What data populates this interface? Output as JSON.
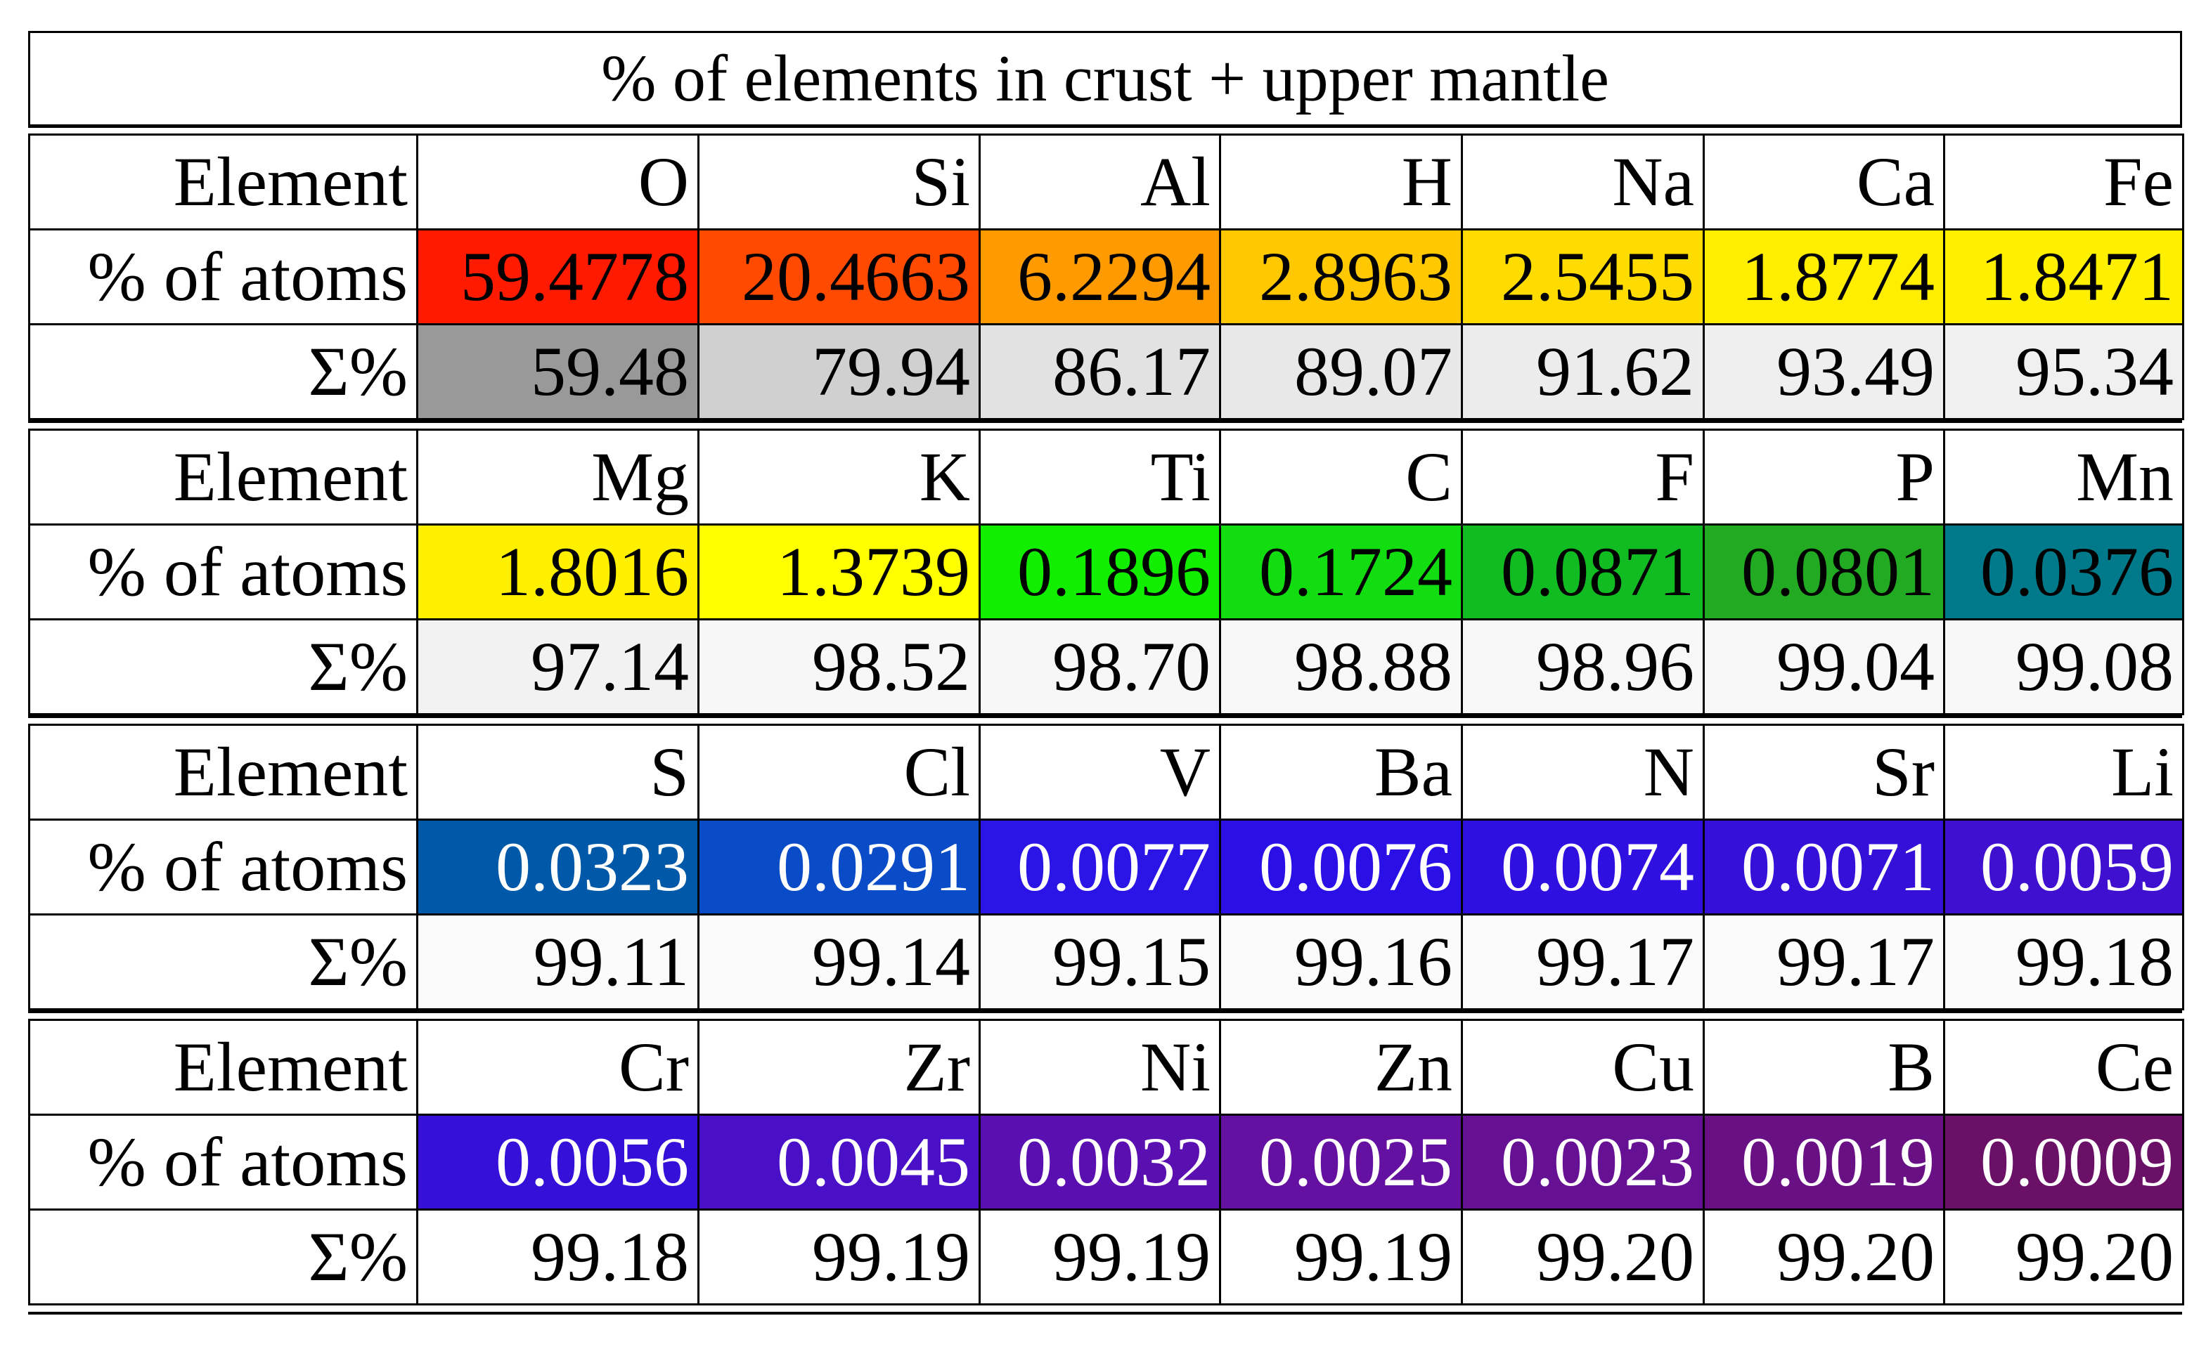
{
  "title": "% of elements in crust + upper mantle",
  "blocks": [
    {
      "element_label": "Element",
      "atoms_label": "% of atoms",
      "sum_label": "Σ%",
      "elements": [
        "O",
        "Si",
        "Al",
        "H",
        "Na",
        "Ca",
        "Fe"
      ],
      "atoms": [
        "59.4778",
        "20.4663",
        "6.2294",
        "2.8963",
        "2.5455",
        "1.8774",
        "1.8471"
      ],
      "atoms_colors": [
        "#ff1a00",
        "#ff4a00",
        "#ff9a00",
        "#ffc800",
        "#ffdc00",
        "#ffee00",
        "#fff000"
      ],
      "atoms_text_colors": [
        "#000000",
        "#000000",
        "#000000",
        "#000000",
        "#000000",
        "#000000",
        "#000000"
      ],
      "sums": [
        "59.48",
        "79.94",
        "86.17",
        "89.07",
        "91.62",
        "93.49",
        "95.34"
      ],
      "sums_colors": [
        "#999999",
        "#d0d0d0",
        "#e2e2e2",
        "#e8e8e8",
        "#ececec",
        "#efefef",
        "#f0f0f0"
      ]
    },
    {
      "element_label": "Element",
      "atoms_label": "% of atoms",
      "sum_label": "Σ%",
      "elements": [
        "Mg",
        "K",
        "Ti",
        "C",
        "F",
        "P",
        "Mn"
      ],
      "atoms": [
        "1.8016",
        "1.3739",
        "0.1896",
        "0.1724",
        "0.0871",
        "0.0801",
        "0.0376"
      ],
      "atoms_colors": [
        "#fff000",
        "#ffff00",
        "#11ee00",
        "#11dd11",
        "#11bb22",
        "#22aa22",
        "#007a8a"
      ],
      "atoms_text_colors": [
        "#000000",
        "#000000",
        "#000000",
        "#000000",
        "#000000",
        "#000000",
        "#000000"
      ],
      "sums": [
        "97.14",
        "98.52",
        "98.70",
        "98.88",
        "98.96",
        "99.04",
        "99.08"
      ],
      "sums_colors": [
        "#f2f2f2",
        "#f7f7f7",
        "#f7f7f7",
        "#f8f8f8",
        "#f8f8f8",
        "#f8f8f8",
        "#f8f8f8"
      ]
    },
    {
      "element_label": "Element",
      "atoms_label": "% of atoms",
      "sum_label": "Σ%",
      "elements": [
        "S",
        "Cl",
        "V",
        "Ba",
        "N",
        "Sr",
        "Li"
      ],
      "atoms": [
        "0.0323",
        "0.0291",
        "0.0077",
        "0.0076",
        "0.0074",
        "0.0071",
        "0.0059"
      ],
      "atoms_colors": [
        "#0058a8",
        "#0a4cc8",
        "#2a14e6",
        "#2a10e6",
        "#3010e0",
        "#3410d8",
        "#4010d0"
      ],
      "atoms_text_colors": [
        "#ffffff",
        "#ffffff",
        "#ffffff",
        "#ffffff",
        "#ffffff",
        "#ffffff",
        "#ffffff"
      ],
      "sums": [
        "99.11",
        "99.14",
        "99.15",
        "99.16",
        "99.17",
        "99.17",
        "99.18"
      ],
      "sums_colors": [
        "#fbfbfb",
        "#fbfbfb",
        "#fbfbfb",
        "#fbfbfb",
        "#fbfbfb",
        "#fbfbfb",
        "#fbfbfb"
      ]
    },
    {
      "element_label": "Element",
      "atoms_label": "% of atoms",
      "sum_label": "Σ%",
      "elements": [
        "Cr",
        "Zr",
        "Ni",
        "Zn",
        "Cu",
        "B",
        "Ce"
      ],
      "atoms": [
        "0.0056",
        "0.0045",
        "0.0032",
        "0.0025",
        "0.0023",
        "0.0019",
        "0.0009"
      ],
      "atoms_colors": [
        "#3410d8",
        "#4a10c8",
        "#5a10b0",
        "#6410a0",
        "#661094",
        "#681084",
        "#6a1066"
      ],
      "atoms_text_colors": [
        "#ffffff",
        "#ffffff",
        "#ffffff",
        "#ffffff",
        "#ffffff",
        "#ffffff",
        "#ffffff"
      ],
      "sums": [
        "99.18",
        "99.19",
        "99.19",
        "99.19",
        "99.20",
        "99.20",
        "99.20"
      ],
      "sums_colors": [
        "#ffffff",
        "#ffffff",
        "#ffffff",
        "#ffffff",
        "#ffffff",
        "#ffffff",
        "#ffffff"
      ]
    }
  ]
}
